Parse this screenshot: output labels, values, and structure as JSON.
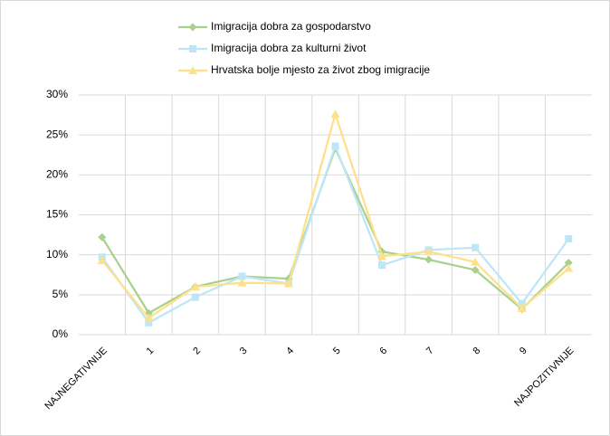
{
  "chart_data": {
    "type": "line",
    "categories": [
      "NAJNEGATIVNIJE",
      "1",
      "2",
      "3",
      "4",
      "5",
      "6",
      "7",
      "8",
      "9",
      "NAJPOZITIVNIJE"
    ],
    "series": [
      {
        "name": "Imigracija dobra za gospodarstvo",
        "color": "#a9d18e",
        "marker": "diamond",
        "values": [
          12.2,
          2.7,
          6.0,
          7.3,
          7.0,
          23.3,
          10.4,
          9.4,
          8.1,
          3.2,
          9.0
        ]
      },
      {
        "name": "Imigracija dobra za kulturni život",
        "color": "#bde6f6",
        "marker": "square",
        "values": [
          9.7,
          1.5,
          4.7,
          7.3,
          6.4,
          23.6,
          8.7,
          10.6,
          10.9,
          3.9,
          12.0
        ]
      },
      {
        "name": "Hrvatska bolje mjesto za život zbog imigracije",
        "color": "#ffe08a",
        "marker": "triangle",
        "values": [
          9.3,
          2.1,
          6.0,
          6.5,
          6.4,
          27.6,
          9.8,
          10.4,
          9.1,
          3.3,
          8.3
        ]
      }
    ],
    "ylim": [
      0,
      30
    ],
    "yticks": [
      {
        "value": 0,
        "label": "0%"
      },
      {
        "value": 5,
        "label": "5%"
      },
      {
        "value": 10,
        "label": "10%"
      },
      {
        "value": 15,
        "label": "15%"
      },
      {
        "value": 20,
        "label": "20%"
      },
      {
        "value": 25,
        "label": "25%"
      },
      {
        "value": 30,
        "label": "30%"
      }
    ],
    "grid": true,
    "legend": "top"
  }
}
